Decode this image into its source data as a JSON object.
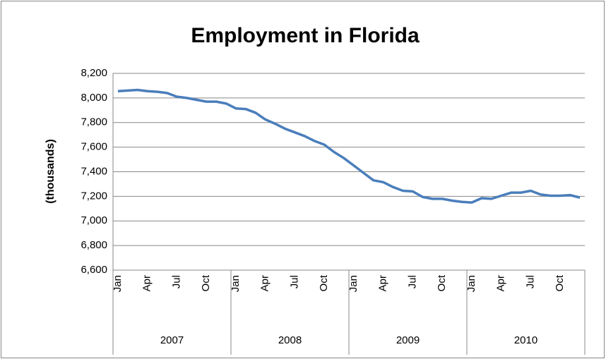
{
  "chart_data": {
    "type": "line",
    "title": "Employment in Florida",
    "ylabel": "(thousands)",
    "categories": [
      "Jan",
      null,
      null,
      "Apr",
      null,
      null,
      "Jul",
      null,
      null,
      "Oct",
      null,
      null,
      "Jan",
      null,
      null,
      "Apr",
      null,
      null,
      "Jul",
      null,
      null,
      "Oct",
      null,
      null,
      "Jan",
      null,
      null,
      "Apr",
      null,
      null,
      "Jul",
      null,
      null,
      "Oct",
      null,
      null,
      "Jan",
      null,
      null,
      "Apr",
      null,
      null,
      "Jul",
      null,
      null,
      "Oct",
      null,
      null
    ],
    "category_groups": [
      "2007",
      "2008",
      "2009",
      "2010"
    ],
    "series": [
      {
        "name": "Employment",
        "color": "#4a7ebb",
        "values": [
          8055,
          8060,
          8065,
          8055,
          8050,
          8040,
          8010,
          8000,
          7985,
          7970,
          7970,
          7955,
          7915,
          7910,
          7880,
          7825,
          7790,
          7750,
          7720,
          7690,
          7650,
          7620,
          7560,
          7510,
          7450,
          7390,
          7330,
          7315,
          7275,
          7245,
          7240,
          7195,
          7180,
          7180,
          7165,
          7155,
          7150,
          7185,
          7180,
          7205,
          7230,
          7230,
          7245,
          7215,
          7205,
          7205,
          7210,
          7190
        ]
      }
    ],
    "ylim": [
      6600,
      8200
    ],
    "yticks": [
      {
        "value": 6600,
        "label": "6,600"
      },
      {
        "value": 6800,
        "label": "6,800"
      },
      {
        "value": 7000,
        "label": "7,000"
      },
      {
        "value": 7200,
        "label": "7,200"
      },
      {
        "value": 7400,
        "label": "7,400"
      },
      {
        "value": 7600,
        "label": "7,600"
      },
      {
        "value": 7800,
        "label": "7,800"
      },
      {
        "value": 8000,
        "label": "8,000"
      },
      {
        "value": 8200,
        "label": "8,200"
      }
    ],
    "grid": true
  }
}
